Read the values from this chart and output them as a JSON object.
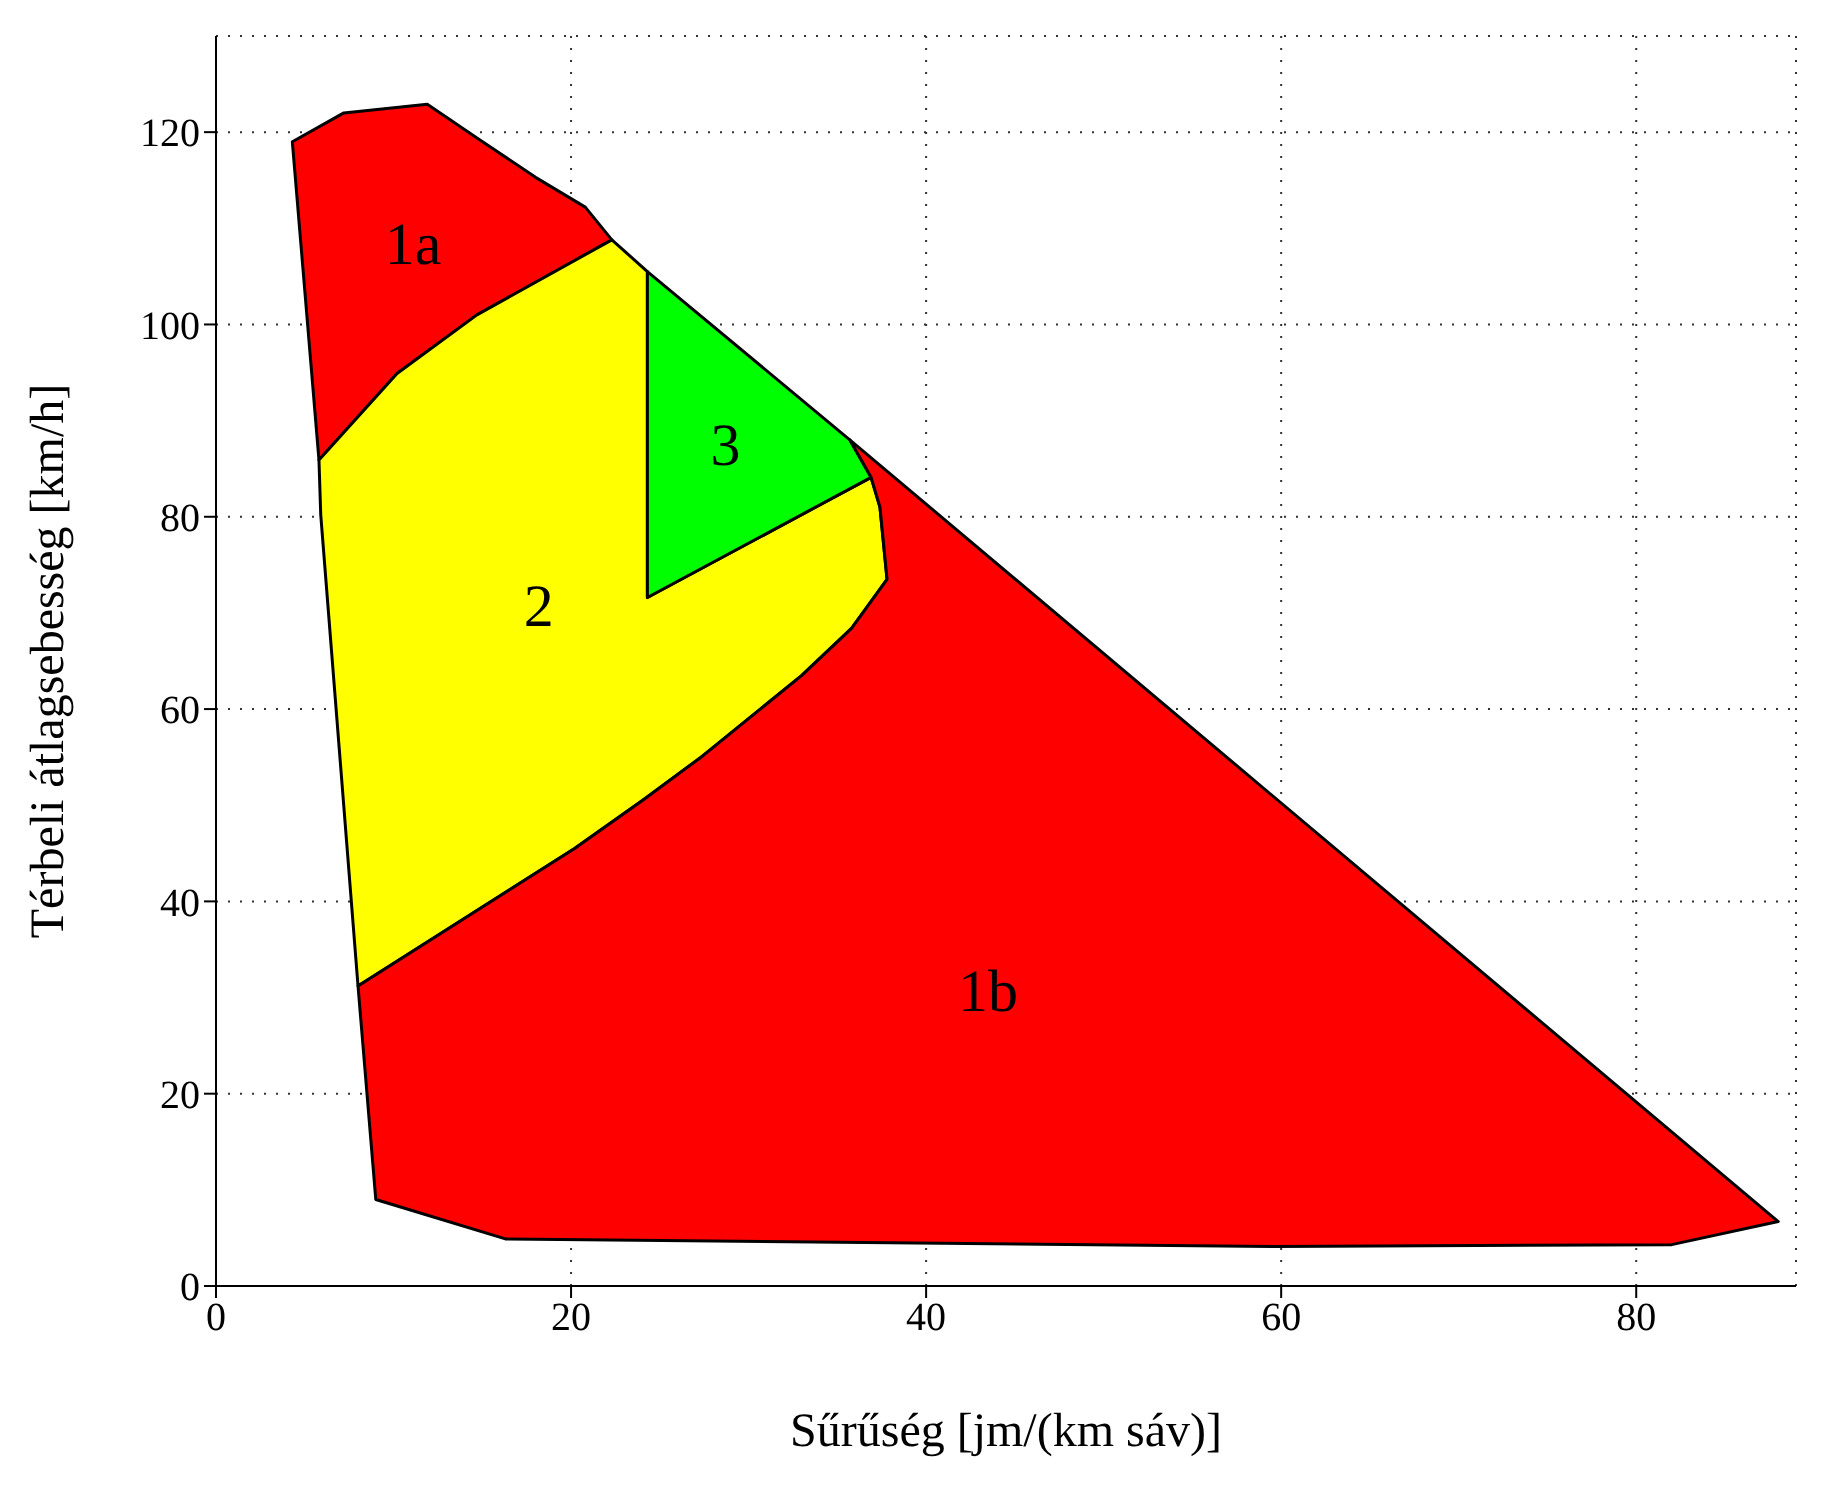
{
  "chart_data": {
    "type": "area",
    "xlabel": "Sűrűség [jm/(km sáv)]",
    "ylabel": "Térbeli átlagsebesség [km/h]",
    "xlim": [
      0,
      89
    ],
    "ylim": [
      0,
      130
    ],
    "xticks": [
      0,
      20,
      40,
      60,
      80
    ],
    "yticks": [
      0,
      20,
      40,
      60,
      80,
      100,
      120
    ],
    "grid": true,
    "line_style": "dotted",
    "series": [
      {
        "name": "1a",
        "color": "#ff0000",
        "x": [
          4.3,
          7.2,
          11.9,
          14.7,
          18,
          20.8,
          22.3,
          14.7,
          10.2,
          5.8
        ],
        "values": [
          119,
          122,
          122.9,
          119.4,
          115.3,
          112.2,
          108.8,
          101,
          94.9,
          85.9
        ]
      },
      {
        "name": "2",
        "color": "#ffff00",
        "x": [
          5.8,
          10.2,
          14.7,
          22.3,
          24.3,
          24.3,
          36.9,
          37.4,
          37.8,
          35.8,
          33,
          27.4,
          24.1,
          20.2,
          8,
          5.9
        ],
        "values": [
          85.9,
          94.9,
          101,
          108.8,
          105.5,
          71.6,
          84.1,
          81,
          73.5,
          68.4,
          63.5,
          55.1,
          50.6,
          45.5,
          31.2,
          80.2
        ]
      },
      {
        "name": "3",
        "color": "#00ff00",
        "x": [
          24.3,
          35.7,
          36.9,
          24.3
        ],
        "values": [
          105.5,
          88,
          84.1,
          71.6
        ]
      },
      {
        "name": "1b",
        "color": "#ff0000",
        "x": [
          35.7,
          88,
          82,
          59.7,
          16.3,
          9,
          8,
          20.2,
          24.1,
          27.4,
          33,
          35.8,
          37.8,
          37.4,
          36.9
        ],
        "values": [
          88,
          6.7,
          4.3,
          4.1,
          4.9,
          9,
          31.2,
          45.5,
          50.6,
          55.1,
          63.5,
          68.4,
          73.5,
          81,
          84.1
        ]
      }
    ]
  }
}
